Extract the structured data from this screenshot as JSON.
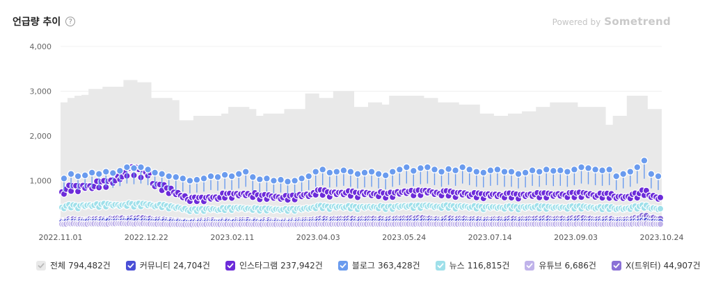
{
  "header": {
    "title": "언급량 추이",
    "help_icon": "question-circle-icon",
    "help_glyph": "?",
    "powered_prefix": "Powered by",
    "powered_brand": "Sometrend"
  },
  "legend": [
    {
      "label": "전체",
      "count": "794,482건",
      "color": "#e9e9e9",
      "check_color": "#b8b8b8"
    },
    {
      "label": "커뮤니티",
      "count": "24,704건",
      "color": "#4a4fd6",
      "check_color": "#ffffff"
    },
    {
      "label": "인스타그램",
      "count": "237,942건",
      "color": "#6c2bd9",
      "check_color": "#ffffff"
    },
    {
      "label": "블로그",
      "count": "363,428건",
      "color": "#6a9bee",
      "check_color": "#ffffff"
    },
    {
      "label": "뉴스",
      "count": "116,815건",
      "color": "#9fe0ea",
      "check_color": "#ffffff"
    },
    {
      "label": "유튜브",
      "count": "6,686건",
      "color": "#c0b3ea",
      "check_color": "#ffffff"
    },
    {
      "label": "X(트위터)",
      "count": "44,907건",
      "color": "#8a70d6",
      "check_color": "#ffffff"
    }
  ],
  "chart_data": {
    "type": "area",
    "x_start": "2022.11.01",
    "x_end": "2023.10.24",
    "xticks": [
      "2022.11.01",
      "2022.12.22",
      "2023.02.11",
      "2023.04.03",
      "2023.05.24",
      "2023.07.14",
      "2023.09.03",
      "2023.10.24"
    ],
    "yticks": [
      "4,000",
      "3,000",
      "2,000",
      "1,000"
    ],
    "ylim": [
      0,
      4000
    ],
    "grid": true,
    "legend_position": "bottom",
    "series": [
      {
        "name": "전체",
        "chart": "area",
        "color": "#e9e9e9",
        "weekly": [
          2750,
          2850,
          2900,
          2920,
          3050,
          3050,
          3100,
          3100,
          3100,
          3250,
          3250,
          3200,
          3200,
          2850,
          2850,
          2850,
          2800,
          2350,
          2350,
          2450,
          2450,
          2450,
          2450,
          2500,
          2650,
          2650,
          2650,
          2600,
          2450,
          2500,
          2500,
          2500,
          2600,
          2600,
          2600,
          2950,
          2950,
          2850,
          2850,
          3000,
          3000,
          3000,
          2650,
          2650,
          2750,
          2750,
          2700,
          2900,
          2900,
          2900,
          2900,
          2900,
          2850,
          2850,
          2750,
          2750,
          2750,
          2700,
          2700,
          2700,
          2500,
          2500,
          2450,
          2450,
          2500,
          2500,
          2550,
          2550,
          2650,
          2650,
          2750,
          2750,
          2750,
          2750,
          2650,
          2650,
          2650,
          2650,
          2250,
          2450,
          2450,
          2900,
          2900,
          2900,
          2600,
          2600
        ]
      },
      {
        "name": "블로그",
        "chart": "lollipop",
        "color": "#6a9bee",
        "weekly": [
          1050,
          1150,
          1100,
          1120,
          1180,
          1150,
          1200,
          1170,
          1220,
          1300,
          1280,
          1300,
          1250,
          1180,
          1150,
          1100,
          1080,
          1050,
          1000,
          1020,
          1050,
          1100,
          1080,
          1130,
          1100,
          1150,
          1200,
          1080,
          1030,
          1050,
          1000,
          1020,
          980,
          1000,
          1050,
          1100,
          1200,
          1250,
          1180,
          1200,
          1230,
          1200,
          1150,
          1180,
          1200,
          1150,
          1120,
          1200,
          1250,
          1300,
          1220,
          1280,
          1300,
          1250,
          1200,
          1260,
          1230,
          1300,
          1250,
          1200,
          1180,
          1230,
          1250,
          1200,
          1200,
          1150,
          1180,
          1230,
          1200,
          1250,
          1220,
          1230,
          1200,
          1250,
          1300,
          1280,
          1250,
          1230,
          1250,
          1100,
          1150,
          1200,
          1300,
          1450,
          1150,
          1100
        ]
      },
      {
        "name": "인스타그램",
        "chart": "dots",
        "color": "#6c2bd9",
        "weekly": [
          780,
          870,
          880,
          900,
          910,
          950,
          980,
          1010,
          1120,
          1230,
          1270,
          1240,
          1200,
          960,
          880,
          820,
          740,
          680,
          600,
          610,
          620,
          640,
          650,
          690,
          700,
          710,
          730,
          700,
          660,
          680,
          660,
          650,
          640,
          660,
          690,
          710,
          760,
          770,
          740,
          750,
          760,
          740,
          720,
          740,
          730,
          720,
          700,
          730,
          760,
          790,
          750,
          770,
          780,
          760,
          740,
          750,
          730,
          740,
          720,
          700,
          690,
          700,
          710,
          690,
          700,
          690,
          700,
          720,
          700,
          710,
          700,
          720,
          700,
          710,
          730,
          720,
          700,
          690,
          700,
          650,
          660,
          670,
          700,
          780,
          680,
          650
        ]
      },
      {
        "name": "뉴스",
        "chart": "dots",
        "color": "#9fe0ea",
        "weekly": [
          420,
          450,
          440,
          460,
          470,
          460,
          480,
          470,
          470,
          480,
          470,
          490,
          480,
          460,
          450,
          430,
          410,
          390,
          350,
          360,
          370,
          380,
          370,
          380,
          390,
          400,
          390,
          380,
          370,
          380,
          370,
          370,
          360,
          370,
          380,
          400,
          420,
          430,
          420,
          430,
          430,
          420,
          410,
          420,
          430,
          420,
          410,
          420,
          440,
          450,
          430,
          440,
          450,
          440,
          430,
          440,
          430,
          440,
          430,
          420,
          410,
          420,
          420,
          410,
          420,
          410,
          420,
          430,
          420,
          420,
          410,
          420,
          410,
          420,
          430,
          420,
          410,
          400,
          410,
          380,
          390,
          400,
          420,
          450,
          400,
          390
        ]
      },
      {
        "name": "X(트위터)",
        "chart": "dots",
        "color": "#8a70d6",
        "weekly": [
          110,
          140,
          130,
          120,
          150,
          140,
          130,
          160,
          170,
          150,
          160,
          170,
          160,
          140,
          130,
          120,
          110,
          100,
          90,
          100,
          110,
          120,
          100,
          110,
          100,
          120,
          130,
          110,
          100,
          120,
          110,
          100,
          100,
          110,
          120,
          130,
          140,
          150,
          140,
          150,
          160,
          150,
          140,
          150,
          160,
          150,
          140,
          150,
          160,
          170,
          160,
          170,
          160,
          150,
          140,
          160,
          150,
          160,
          150,
          140,
          130,
          140,
          150,
          140,
          150,
          140,
          150,
          160,
          150,
          160,
          150,
          160,
          150,
          160,
          170,
          160,
          150,
          140,
          150,
          130,
          140,
          150,
          170,
          220,
          180,
          160
        ]
      },
      {
        "name": "커뮤니티",
        "chart": "dots",
        "color": "#4a4fd6",
        "weekly": [
          80,
          90,
          85,
          90,
          95,
          90,
          100,
          95,
          100,
          110,
          105,
          100,
          100,
          95,
          90,
          85,
          80,
          75,
          70,
          72,
          75,
          80,
          78,
          80,
          78,
          80,
          85,
          80,
          75,
          78,
          76,
          75,
          72,
          75,
          80,
          85,
          90,
          92,
          88,
          90,
          92,
          90,
          88,
          90,
          92,
          90,
          88,
          90,
          95,
          98,
          92,
          95,
          98,
          95,
          92,
          95,
          92,
          95,
          92,
          90,
          88,
          90,
          92,
          90,
          90,
          88,
          90,
          92,
          90,
          92,
          90,
          92,
          90,
          92,
          95,
          92,
          90,
          88,
          90,
          85,
          86,
          88,
          95,
          110,
          92,
          88
        ]
      },
      {
        "name": "유튜브",
        "chart": "dots",
        "color": "#c0b3ea",
        "weekly": [
          30,
          40,
          35,
          30,
          40,
          35,
          30,
          40,
          45,
          40,
          35,
          40,
          35,
          30,
          30,
          25,
          25,
          20,
          20,
          22,
          25,
          28,
          25,
          25,
          22,
          25,
          28,
          25,
          22,
          25,
          24,
          22,
          22,
          24,
          26,
          28,
          30,
          32,
          30,
          30,
          32,
          30,
          28,
          30,
          32,
          30,
          28,
          30,
          32,
          34,
          30,
          32,
          34,
          32,
          30,
          32,
          30,
          32,
          30,
          28,
          28,
          30,
          30,
          28,
          30,
          28,
          30,
          32,
          30,
          32,
          30,
          32,
          30,
          32,
          34,
          32,
          30,
          28,
          30,
          26,
          28,
          30,
          34,
          40,
          32,
          30
        ]
      }
    ]
  }
}
